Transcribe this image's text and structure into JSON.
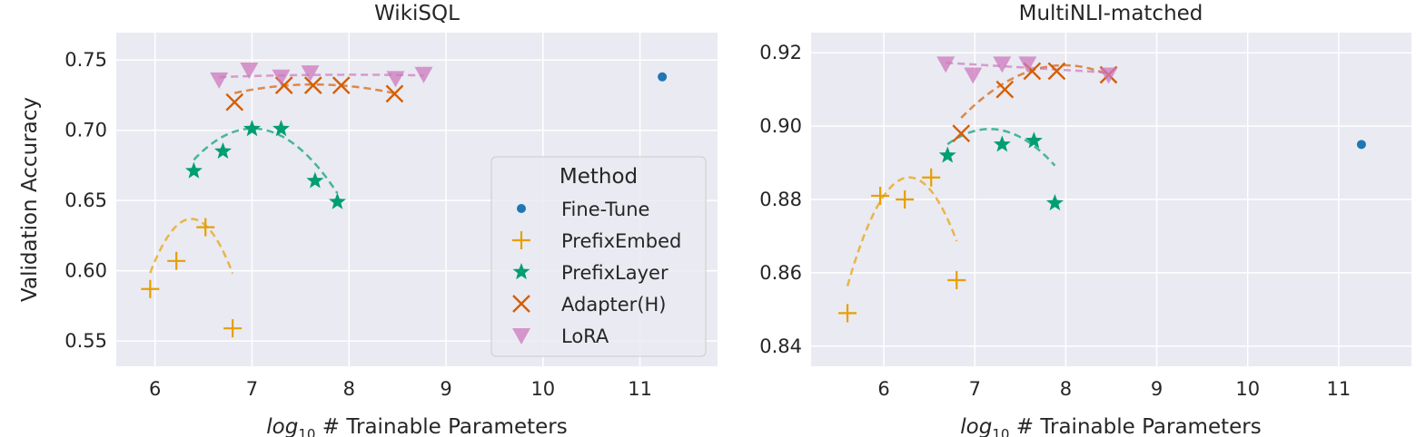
{
  "chart_data": [
    {
      "type": "scatter",
      "title": "WikiSQL",
      "xlabel_pre": "log",
      "xlabel_sub": "10",
      "xlabel_post": " # Trainable Parameters",
      "ylabel": "Validation Accuracy",
      "xlim": [
        5.6,
        11.8
      ],
      "ylim": [
        0.532,
        0.7695
      ],
      "xticks": [
        6,
        7,
        8,
        9,
        10,
        11
      ],
      "yticks": [
        0.55,
        0.6,
        0.65,
        0.7,
        0.75
      ],
      "ytick_decimals": 2,
      "grid": true,
      "legend": {
        "title": "Method",
        "placement": "center-right",
        "entries": [
          "Fine-Tune",
          "PrefixEmbed",
          "PrefixLayer",
          "Adapter(H)",
          "LoRA"
        ]
      },
      "series": [
        {
          "name": "Fine-Tune",
          "marker": "circle",
          "color": "#1f77b4",
          "points": [
            [
              11.23,
              0.738
            ]
          ]
        },
        {
          "name": "PrefixEmbed",
          "marker": "plus",
          "color": "#e69f00",
          "points": [
            [
              5.95,
              0.587
            ],
            [
              6.22,
              0.607
            ],
            [
              6.52,
              0.631
            ],
            [
              6.8,
              0.559
            ]
          ],
          "fit": [
            -0.214,
            2.728,
            -8.057
          ]
        },
        {
          "name": "PrefixLayer",
          "marker": "star",
          "color": "#009e73",
          "points": [
            [
              6.4,
              0.671
            ],
            [
              6.7,
              0.685
            ],
            [
              7.0,
              0.701
            ],
            [
              7.3,
              0.701
            ],
            [
              7.65,
              0.664
            ],
            [
              7.88,
              0.649
            ]
          ],
          "fit": [
            -0.0604,
            0.8464,
            -2.264
          ]
        },
        {
          "name": "Adapter(H)",
          "marker": "x",
          "color": "#d55e00",
          "points": [
            [
              6.82,
              0.72
            ],
            [
              7.33,
              0.732
            ],
            [
              7.63,
              0.732
            ],
            [
              7.92,
              0.732
            ],
            [
              8.47,
              0.726
            ]
          ],
          "fit": [
            -0.0091,
            0.139,
            0.2018
          ]
        },
        {
          "name": "LoRA",
          "marker": "triangle-down",
          "color": "#cc78bc",
          "points": [
            [
              6.66,
              0.736
            ],
            [
              6.97,
              0.743
            ],
            [
              7.3,
              0.738
            ],
            [
              7.6,
              0.741
            ],
            [
              8.48,
              0.737
            ],
            [
              8.77,
              0.74
            ]
          ],
          "fit": [
            -0.00089,
            0.0143,
            0.6821
          ]
        }
      ]
    },
    {
      "type": "scatter",
      "title": "MultiNLI-matched",
      "xlabel_pre": "log",
      "xlabel_sub": "10",
      "xlabel_post": " # Trainable Parameters",
      "ylabel": "",
      "xlim": [
        5.2,
        11.8
      ],
      "ylim": [
        0.8345,
        0.9255
      ],
      "xticks": [
        6,
        7,
        8,
        9,
        10,
        11
      ],
      "yticks": [
        0.84,
        0.86,
        0.88,
        0.9,
        0.92
      ],
      "ytick_decimals": 2,
      "grid": true,
      "series": [
        {
          "name": "Fine-Tune",
          "marker": "circle",
          "color": "#1f77b4",
          "points": [
            [
              11.25,
              0.895
            ]
          ]
        },
        {
          "name": "PrefixEmbed",
          "marker": "plus",
          "color": "#e69f00",
          "points": [
            [
              5.6,
              0.849
            ],
            [
              5.96,
              0.881
            ],
            [
              6.23,
              0.88
            ],
            [
              6.52,
              0.886
            ],
            [
              6.8,
              0.858
            ]
          ],
          "fit": [
            -0.0642,
            0.8063,
            -1.6456
          ]
        },
        {
          "name": "PrefixLayer",
          "marker": "star",
          "color": "#009e73",
          "points": [
            [
              6.7,
              0.892
            ],
            [
              7.3,
              0.895
            ],
            [
              7.65,
              0.896
            ],
            [
              7.88,
              0.879
            ]
          ],
          "fit": [
            -0.0194,
            0.2779,
            -0.096
          ]
        },
        {
          "name": "Adapter(H)",
          "marker": "x",
          "color": "#d55e00",
          "points": [
            [
              6.85,
              0.898
            ],
            [
              7.33,
              0.91
            ],
            [
              7.63,
              0.915
            ],
            [
              7.9,
              0.915
            ],
            [
              8.47,
              0.914
            ]
          ],
          "fit": [
            -0.0112,
            0.1788,
            0.203
          ]
        },
        {
          "name": "LoRA",
          "marker": "triangle-down",
          "color": "#cc78bc",
          "points": [
            [
              6.68,
              0.917
            ],
            [
              6.98,
              0.914
            ],
            [
              7.3,
              0.917
            ],
            [
              7.58,
              0.917
            ],
            [
              8.47,
              0.914
            ]
          ],
          "fit": [
            0,
            -0.0015,
            0.9273
          ]
        }
      ]
    }
  ],
  "colors": {
    "axes_bg": "#eaeaf2",
    "grid": "#ffffff",
    "text": "#262626"
  }
}
